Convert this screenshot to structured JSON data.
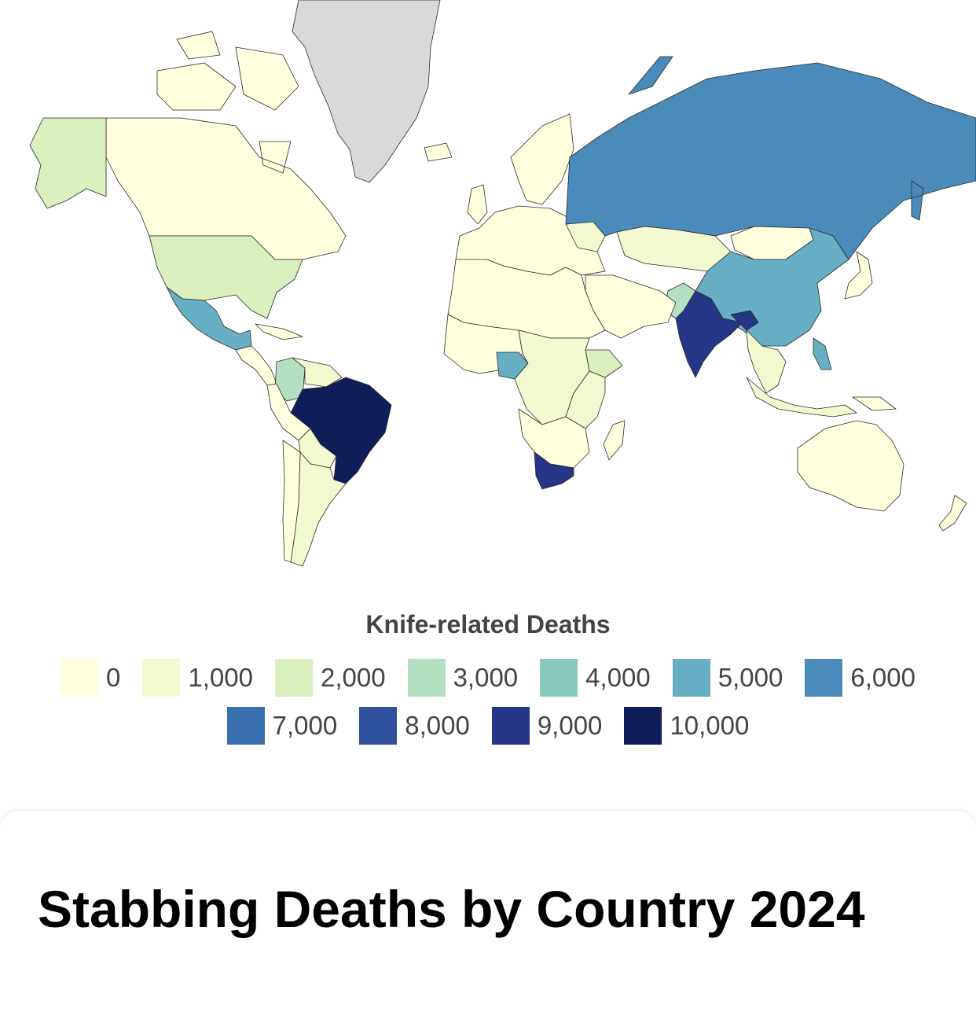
{
  "page": {
    "title": "Stabbing Deaths by Country 2024"
  },
  "legend": {
    "title": "Knife-related Deaths",
    "items": [
      {
        "label": "0",
        "color": "#ffffde"
      },
      {
        "label": "1,000",
        "color": "#f2f9cf"
      },
      {
        "label": "2,000",
        "color": "#d9f0bd"
      },
      {
        "label": "3,000",
        "color": "#b2e0c0"
      },
      {
        "label": "4,000",
        "color": "#88c9bd"
      },
      {
        "label": "5,000",
        "color": "#67afc4"
      },
      {
        "label": "6,000",
        "color": "#4b8bbb"
      },
      {
        "label": "7,000",
        "color": "#3a70b0"
      },
      {
        "label": "8,000",
        "color": "#2d519e"
      },
      {
        "label": "9,000",
        "color": "#253686"
      },
      {
        "label": "10,000",
        "color": "#0f1e58"
      }
    ]
  },
  "map": {
    "no_data_color": "#d9d9d9",
    "regions": [
      {
        "name": "Greenland",
        "value": null
      },
      {
        "name": "Canada",
        "value": 500
      },
      {
        "name": "Alaska",
        "value": 2000
      },
      {
        "name": "United States",
        "value": 2000
      },
      {
        "name": "Mexico",
        "value": 5000
      },
      {
        "name": "Central America",
        "value": 500
      },
      {
        "name": "Colombia",
        "value": 3000
      },
      {
        "name": "Venezuela",
        "value": 1000
      },
      {
        "name": "Brazil",
        "value": 10000
      },
      {
        "name": "Peru",
        "value": 500
      },
      {
        "name": "Bolivia",
        "value": 1000
      },
      {
        "name": "Argentina",
        "value": 1000
      },
      {
        "name": "Chile",
        "value": 500
      },
      {
        "name": "Europe",
        "value": 500
      },
      {
        "name": "Scandinavia",
        "value": 500
      },
      {
        "name": "Ukraine",
        "value": 1000
      },
      {
        "name": "Russia",
        "value": 6000
      },
      {
        "name": "Kazakhstan",
        "value": 1000
      },
      {
        "name": "Mongolia",
        "value": 500
      },
      {
        "name": "China",
        "value": 5000
      },
      {
        "name": "Pakistan",
        "value": 3000
      },
      {
        "name": "India",
        "value": 9000
      },
      {
        "name": "Bangladesh",
        "value": 9000
      },
      {
        "name": "Southeast Asia",
        "value": 1000
      },
      {
        "name": "Philippines",
        "value": 5000
      },
      {
        "name": "Indonesia",
        "value": 1000
      },
      {
        "name": "Japan",
        "value": 500
      },
      {
        "name": "Middle East",
        "value": 500
      },
      {
        "name": "North Africa",
        "value": 500
      },
      {
        "name": "West Africa",
        "value": 500
      },
      {
        "name": "Nigeria",
        "value": 5000
      },
      {
        "name": "Ethiopia",
        "value": 2000
      },
      {
        "name": "Central Africa",
        "value": 1000
      },
      {
        "name": "East Africa",
        "value": 1000
      },
      {
        "name": "Southern Africa",
        "value": 500
      },
      {
        "name": "South Africa",
        "value": 9000
      },
      {
        "name": "Madagascar",
        "value": 500
      },
      {
        "name": "Australia",
        "value": 500
      },
      {
        "name": "New Zealand",
        "value": 500
      },
      {
        "name": "Iceland",
        "value": 500
      },
      {
        "name": "United Kingdom",
        "value": 500
      },
      {
        "name": "Papua New Guinea",
        "value": 500
      }
    ]
  }
}
